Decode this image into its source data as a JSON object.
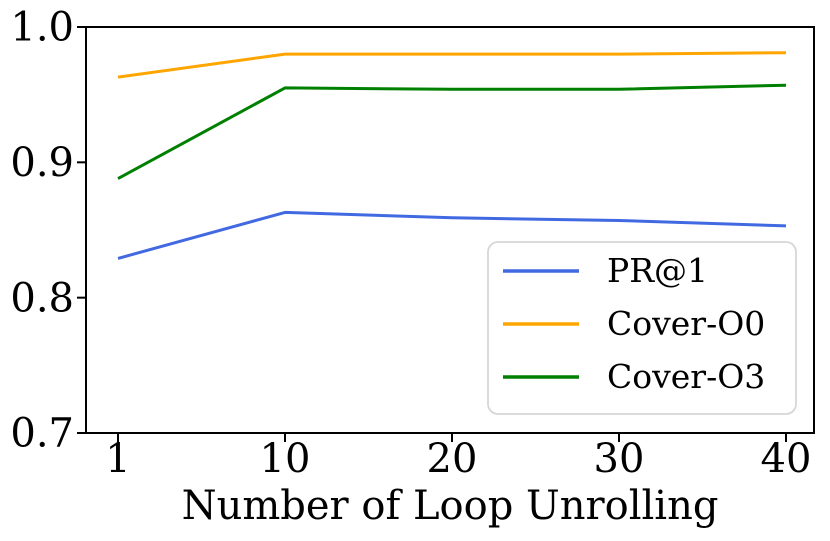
{
  "chart_data": {
    "type": "line",
    "title": "",
    "xlabel": "Number of Loop Unrolling",
    "ylabel": "",
    "categories": [
      1,
      10,
      20,
      30,
      40
    ],
    "x_tick_labels": [
      "1",
      "10",
      "20",
      "30",
      "40"
    ],
    "x_spacing": "even",
    "ylim": [
      0.7,
      1.0
    ],
    "y_tick_values": [
      1.0,
      0.9,
      0.8,
      0.7
    ],
    "y_tick_labels": [
      "1.0",
      "0.9",
      "0.8",
      "0.7"
    ],
    "grid": false,
    "axis_color": "#000000",
    "background_color": "#ffffff",
    "legend": {
      "position": "lower-right-inside",
      "border_color": "#d6d6d6",
      "fill_color": "#ffffff",
      "entries": [
        "PR@1",
        "Cover-O0",
        "Cover-O3"
      ]
    },
    "series": [
      {
        "name": "PR@1",
        "color": "#4169e1",
        "values": [
          0.829,
          0.863,
          0.859,
          0.857,
          0.853
        ]
      },
      {
        "name": "Cover-O0",
        "color": "#ffa500",
        "values": [
          0.963,
          0.98,
          0.98,
          0.98,
          0.981
        ]
      },
      {
        "name": "Cover-O3",
        "color": "#008000",
        "values": [
          0.888,
          0.955,
          0.954,
          0.954,
          0.957
        ]
      }
    ]
  }
}
